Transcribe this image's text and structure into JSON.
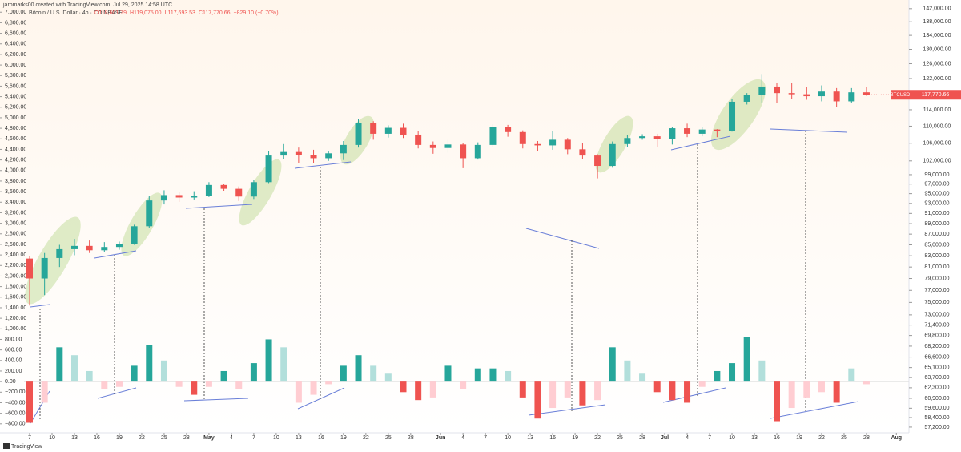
{
  "chart_data": {
    "type": "candlestick",
    "author_line": "jaromarks00 created with TradingView.com, Jul 29, 2025 14:58 UTC",
    "symbol": "Bitcoin / U.S. Dollar · 4h · COINBASE",
    "legend_values": [
      "O118,601.79",
      "H119,075.00",
      "L117,693.53",
      "C117,770.66",
      "−829.10 (−0.70%)"
    ],
    "symbol_tag": "BTCUSD",
    "brand": "TradingView",
    "log_scale": true,
    "up_color": "#26a69a",
    "down_color": "#ef5350",
    "x": [
      "2025-04-07",
      "2025-04-09",
      "2025-04-11",
      "2025-04-13",
      "2025-04-15",
      "2025-04-17",
      "2025-04-19",
      "2025-04-21",
      "2025-04-23",
      "2025-04-25",
      "2025-04-27",
      "2025-04-29",
      "2025-05-01",
      "2025-05-03",
      "2025-05-05",
      "2025-05-07",
      "2025-05-09",
      "2025-05-11",
      "2025-05-13",
      "2025-05-15",
      "2025-05-17",
      "2025-05-19",
      "2025-05-21",
      "2025-05-23",
      "2025-05-25",
      "2025-05-27",
      "2025-05-29",
      "2025-05-31",
      "2025-06-02",
      "2025-06-04",
      "2025-06-06",
      "2025-06-08",
      "2025-06-10",
      "2025-06-12",
      "2025-06-14",
      "2025-06-16",
      "2025-06-18",
      "2025-06-20",
      "2025-06-22",
      "2025-06-24",
      "2025-06-26",
      "2025-06-28",
      "2025-06-30",
      "2025-07-02",
      "2025-07-04",
      "2025-07-06",
      "2025-07-08",
      "2025-07-10",
      "2025-07-12",
      "2025-07-14",
      "2025-07-16",
      "2025-07-18",
      "2025-07-20",
      "2025-07-22",
      "2025-07-24",
      "2025-07-26",
      "2025-07-28"
    ],
    "open": [
      82500,
      79000,
      82600,
      84200,
      84800,
      84000,
      84600,
      85200,
      88500,
      93600,
      94700,
      94200,
      94600,
      96800,
      96000,
      94400,
      97400,
      103200,
      104000,
      103300,
      102600,
      103700,
      105600,
      110800,
      108200,
      109600,
      108000,
      105600,
      104900,
      105700,
      102600,
      105600,
      109800,
      108600,
      105800,
      105500,
      106800,
      104600,
      103200,
      100900,
      105800,
      107200,
      107600,
      106900,
      109500,
      108200,
      109200,
      108900,
      116000,
      117700,
      119900,
      118200,
      117900,
      117400,
      118600,
      116100,
      118400
    ],
    "high": [
      83000,
      83500,
      85000,
      86100,
      85800,
      85500,
      85600,
      88800,
      94500,
      95700,
      95400,
      95500,
      97400,
      97000,
      96500,
      97800,
      104200,
      105800,
      105000,
      104500,
      104200,
      106500,
      111800,
      111200,
      110200,
      110600,
      108800,
      106400,
      106800,
      106000,
      106200,
      110500,
      110300,
      109000,
      106500,
      108800,
      107200,
      106000,
      103500,
      106400,
      108000,
      108100,
      108200,
      109800,
      110600,
      109700,
      109300,
      116800,
      118200,
      123200,
      120800,
      120900,
      119700,
      120200,
      119500,
      119500,
      119800
    ],
    "low": [
      74500,
      76200,
      81000,
      83100,
      83500,
      83700,
      84100,
      85000,
      88200,
      92800,
      93300,
      93800,
      94300,
      95600,
      93500,
      93900,
      97200,
      102400,
      101500,
      101500,
      102000,
      102200,
      105000,
      106800,
      107300,
      107200,
      104800,
      103600,
      103800,
      100400,
      102300,
      105200,
      107500,
      104800,
      104200,
      104500,
      103500,
      102400,
      98200,
      100500,
      105200,
      106800,
      105200,
      105700,
      107400,
      107600,
      107400,
      108700,
      115300,
      115800,
      115700,
      116800,
      116500,
      116100,
      114700,
      115800,
      117500
    ],
    "close": [
      79000,
      82600,
      84200,
      84800,
      84000,
      84600,
      85200,
      88500,
      93600,
      94700,
      94200,
      94600,
      96800,
      96000,
      94400,
      97400,
      103200,
      104000,
      103300,
      102600,
      103700,
      105600,
      110800,
      108200,
      109600,
      108000,
      105600,
      104900,
      105700,
      102600,
      105600,
      109800,
      108600,
      105800,
      105500,
      106800,
      104600,
      103200,
      100900,
      105800,
      107200,
      107600,
      106900,
      109500,
      108200,
      109200,
      108900,
      116000,
      117700,
      119900,
      118200,
      117900,
      117400,
      118600,
      116100,
      118400,
      117770.66
    ],
    "last_price_label": "117,770.66",
    "ylim": [
      56500,
      142700
    ],
    "yticks": [
      {
        "value": 142000,
        "label": "142,000.00"
      },
      {
        "value": 138000,
        "label": "138,000.00"
      },
      {
        "value": 134000,
        "label": "134,000.00"
      },
      {
        "value": 130000,
        "label": "130,000.00"
      },
      {
        "value": 126000,
        "label": "126,000.00"
      },
      {
        "value": 122000,
        "label": "122,000.00"
      },
      {
        "value": 114000,
        "label": "114,000.00"
      },
      {
        "value": 110000,
        "label": "110,000.00"
      },
      {
        "value": 106000,
        "label": "106,000.00"
      },
      {
        "value": 102000,
        "label": "102,000.00"
      },
      {
        "value": 99000,
        "label": "99,000.00"
      },
      {
        "value": 97000,
        "label": "97,000.00"
      },
      {
        "value": 95000,
        "label": "95,000.00"
      },
      {
        "value": 93000,
        "label": "93,000.00"
      },
      {
        "value": 91000,
        "label": "91,000.00"
      },
      {
        "value": 89000,
        "label": "89,000.00"
      },
      {
        "value": 87000,
        "label": "87,000.00"
      },
      {
        "value": 85000,
        "label": "85,000.00"
      },
      {
        "value": 83000,
        "label": "83,000.00"
      },
      {
        "value": 81000,
        "label": "81,000.00"
      },
      {
        "value": 79000,
        "label": "79,000.00"
      },
      {
        "value": 77000,
        "label": "77,000.00"
      },
      {
        "value": 75000,
        "label": "75,000.00"
      },
      {
        "value": 73000,
        "label": "73,000.00"
      },
      {
        "value": 71400,
        "label": "71,400.00"
      },
      {
        "value": 69800,
        "label": "69,800.00"
      },
      {
        "value": 68200,
        "label": "68,200.00"
      },
      {
        "value": 66600,
        "label": "66,600.00"
      },
      {
        "value": 65100,
        "label": "65,100.00"
      },
      {
        "value": 63700,
        "label": "63,700.00"
      },
      {
        "value": 62300,
        "label": "62,300.00"
      },
      {
        "value": 60900,
        "label": "60,900.00"
      },
      {
        "value": 59600,
        "label": "59,600.00"
      },
      {
        "value": 58400,
        "label": "58,400.00"
      },
      {
        "value": 57200,
        "label": "57,200.00"
      }
    ],
    "histogram": {
      "axis": "y2",
      "values": [
        -780,
        -400,
        650,
        500,
        200,
        -150,
        -100,
        300,
        700,
        400,
        -100,
        -250,
        -100,
        200,
        -150,
        350,
        800,
        650,
        -400,
        -250,
        -50,
        300,
        500,
        300,
        150,
        -200,
        -350,
        -300,
        300,
        -150,
        250,
        250,
        200,
        -300,
        -700,
        -500,
        -300,
        -450,
        -350,
        650,
        400,
        150,
        -200,
        -350,
        -400,
        -100,
        200,
        350,
        850,
        400,
        -750,
        -500,
        -300,
        -200,
        -400,
        250,
        -50
      ]
    },
    "y2lim": [
      -970,
      7110
    ],
    "y2ticks": [
      {
        "value": 7000,
        "label": "7,000.00"
      },
      {
        "value": 6800,
        "label": "6,800.00"
      },
      {
        "value": 6600,
        "label": "6,600.00"
      },
      {
        "value": 6400,
        "label": "6,400.00"
      },
      {
        "value": 6200,
        "label": "6,200.00"
      },
      {
        "value": 6000,
        "label": "6,000.00"
      },
      {
        "value": 5800,
        "label": "5,800.00"
      },
      {
        "value": 5600,
        "label": "5,600.00"
      },
      {
        "value": 5400,
        "label": "5,400.00"
      },
      {
        "value": 5200,
        "label": "5,200.00"
      },
      {
        "value": 5000,
        "label": "5,000.00"
      },
      {
        "value": 4800,
        "label": "4,800.00"
      },
      {
        "value": 4600,
        "label": "4,600.00"
      },
      {
        "value": 4400,
        "label": "4,400.00"
      },
      {
        "value": 4200,
        "label": "4,200.00"
      },
      {
        "value": 4000,
        "label": "4,000.00"
      },
      {
        "value": 3800,
        "label": "3,800.00"
      },
      {
        "value": 3600,
        "label": "3,600.00"
      },
      {
        "value": 3400,
        "label": "3,400.00"
      },
      {
        "value": 3200,
        "label": "3,200.00"
      },
      {
        "value": 3000,
        "label": "3,000.00"
      },
      {
        "value": 2800,
        "label": "2,800.00"
      },
      {
        "value": 2600,
        "label": "2,600.00"
      },
      {
        "value": 2400,
        "label": "2,400.00"
      },
      {
        "value": 2200,
        "label": "2,200.00"
      },
      {
        "value": 2000,
        "label": "2,000.00"
      },
      {
        "value": 1800,
        "label": "1,800.00"
      },
      {
        "value": 1600,
        "label": "1,600.00"
      },
      {
        "value": 1400,
        "label": "1,400.00"
      },
      {
        "value": 1200,
        "label": "1,200.00"
      },
      {
        "value": 1000,
        "label": "1,000.00"
      },
      {
        "value": 800,
        "label": "800.00"
      },
      {
        "value": 600,
        "label": "600.00"
      },
      {
        "value": 400,
        "label": "400.00"
      },
      {
        "value": 200,
        "label": "200.00"
      },
      {
        "value": 0,
        "label": "0.00"
      },
      {
        "value": -200,
        "label": "−200.00"
      },
      {
        "value": -400,
        "label": "−400.00"
      },
      {
        "value": -600,
        "label": "−600.00"
      },
      {
        "value": -800,
        "label": "−800.00"
      }
    ],
    "xticks": [
      {
        "value": "2025-04-07",
        "label": "7"
      },
      {
        "value": "2025-04-10",
        "label": "10"
      },
      {
        "value": "2025-04-13",
        "label": "13"
      },
      {
        "value": "2025-04-16",
        "label": "16"
      },
      {
        "value": "2025-04-19",
        "label": "19"
      },
      {
        "value": "2025-04-22",
        "label": "22"
      },
      {
        "value": "2025-04-25",
        "label": "25"
      },
      {
        "value": "2025-04-28",
        "label": "28"
      },
      {
        "value": "2025-05-01",
        "label": "May"
      },
      {
        "value": "2025-05-04",
        "label": "4"
      },
      {
        "value": "2025-05-07",
        "label": "7"
      },
      {
        "value": "2025-05-10",
        "label": "10"
      },
      {
        "value": "2025-05-13",
        "label": "13"
      },
      {
        "value": "2025-05-16",
        "label": "16"
      },
      {
        "value": "2025-05-19",
        "label": "19"
      },
      {
        "value": "2025-05-22",
        "label": "22"
      },
      {
        "value": "2025-05-25",
        "label": "25"
      },
      {
        "value": "2025-05-28",
        "label": "28"
      },
      {
        "value": "2025-06-01",
        "label": "Jun"
      },
      {
        "value": "2025-06-04",
        "label": "4"
      },
      {
        "value": "2025-06-07",
        "label": "7"
      },
      {
        "value": "2025-06-10",
        "label": "10"
      },
      {
        "value": "2025-06-13",
        "label": "13"
      },
      {
        "value": "2025-06-16",
        "label": "16"
      },
      {
        "value": "2025-06-19",
        "label": "19"
      },
      {
        "value": "2025-06-22",
        "label": "22"
      },
      {
        "value": "2025-06-25",
        "label": "25"
      },
      {
        "value": "2025-06-28",
        "label": "28"
      },
      {
        "value": "2025-07-01",
        "label": "Jul"
      },
      {
        "value": "2025-07-04",
        "label": "4"
      },
      {
        "value": "2025-07-07",
        "label": "7"
      },
      {
        "value": "2025-07-10",
        "label": "10"
      },
      {
        "value": "2025-07-13",
        "label": "13"
      },
      {
        "value": "2025-07-16",
        "label": "16"
      },
      {
        "value": "2025-07-19",
        "label": "19"
      },
      {
        "value": "2025-07-22",
        "label": "22"
      },
      {
        "value": "2025-07-25",
        "label": "25"
      },
      {
        "value": "2025-07-28",
        "label": "28"
      },
      {
        "value": "2025-08-01",
        "label": "Aug"
      }
    ]
  }
}
